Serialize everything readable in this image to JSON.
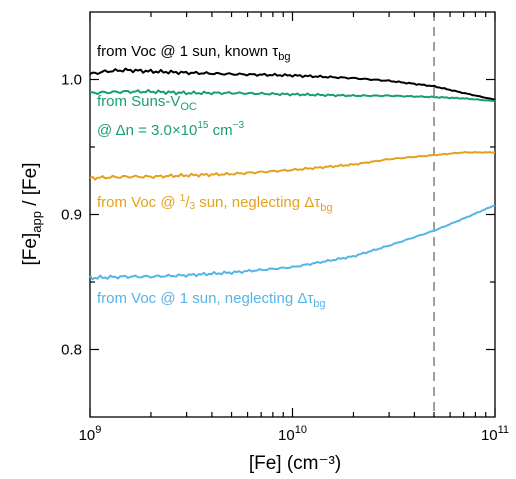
{
  "chart_data": {
    "type": "line",
    "xlabel": "[Fe] (cm⁻³)",
    "ylabel_main": "[Fe]",
    "ylabel_sub": "app",
    "ylabel_rest": " / [Fe]",
    "x_scale": "log",
    "xlim": [
      1000000000.0,
      100000000000.0
    ],
    "ylim": [
      0.75,
      1.05
    ],
    "x_ticks": [
      {
        "value": 1000000000.0,
        "base": "10",
        "exp": "9"
      },
      {
        "value": 10000000000.0,
        "base": "10",
        "exp": "10"
      },
      {
        "value": 100000000000.0,
        "base": "10",
        "exp": "11"
      }
    ],
    "y_ticks": [
      {
        "value": 0.8,
        "label": "0.8"
      },
      {
        "value": 0.9,
        "label": "0.9"
      },
      {
        "value": 1.0,
        "label": "1.0"
      }
    ],
    "vline": {
      "x": 50000000000.0,
      "style": "dashed",
      "color": "#808080"
    },
    "series": [
      {
        "key": "voc_known",
        "color": "#000000",
        "x": [
          1000000000.0,
          1200000000.0,
          1500000000.0,
          2000000000.0,
          3000000000.0,
          5000000000.0,
          10000000000.0,
          20000000000.0,
          30000000000.0,
          50000000000.0,
          70000000000.0,
          100000000000.0
        ],
        "values": [
          1.004,
          1.006,
          1.007,
          1.006,
          1.005,
          1.004,
          1.003,
          1.001,
          0.999,
          0.995,
          0.99,
          0.985
        ]
      },
      {
        "key": "suns_voc",
        "color": "#1a9e77",
        "x": [
          1000000000.0,
          1500000000.0,
          2000000000.0,
          3000000000.0,
          5000000000.0,
          10000000000.0,
          20000000000.0,
          30000000000.0,
          50000000000.0,
          70000000000.0,
          100000000000.0
        ],
        "values": [
          0.99,
          0.991,
          0.991,
          0.99,
          0.99,
          0.989,
          0.988,
          0.988,
          0.987,
          0.986,
          0.984
        ]
      },
      {
        "key": "voc_third_sun",
        "color": "#e6a11c",
        "x": [
          1000000000.0,
          1500000000.0,
          2000000000.0,
          3000000000.0,
          5000000000.0,
          10000000000.0,
          20000000000.0,
          30000000000.0,
          50000000000.0,
          70000000000.0,
          100000000000.0
        ],
        "values": [
          0.927,
          0.928,
          0.928,
          0.929,
          0.93,
          0.933,
          0.937,
          0.941,
          0.944,
          0.946,
          0.946
        ]
      },
      {
        "key": "voc_one_sun_neglect",
        "color": "#56b4e9",
        "x": [
          1000000000.0,
          1500000000.0,
          2000000000.0,
          3000000000.0,
          5000000000.0,
          10000000000.0,
          20000000000.0,
          30000000000.0,
          50000000000.0,
          70000000000.0,
          100000000000.0
        ],
        "values": [
          0.853,
          0.854,
          0.854,
          0.855,
          0.857,
          0.861,
          0.869,
          0.877,
          0.888,
          0.897,
          0.907
        ]
      }
    ],
    "annotations": {
      "a1": {
        "text": "from Voc @ 1 sun, known τ",
        "sub": "bg",
        "color": "#000000"
      },
      "a2": {
        "text": "from Suns-V",
        "sub": "OC",
        "color": "#1a9e77"
      },
      "a3_pre": "@ Δn = 3.0×10",
      "a3_sup": "15",
      "a3_post": " cm",
      "a3_sup2": "−3",
      "a4_pre": "from Voc @ ",
      "a4_sup": "1",
      "a4_slash": "/",
      "a4_sub": "3",
      "a4_post": " sun, neglecting Δτ",
      "a4_sub2": "bg",
      "a5": {
        "text": "from Voc @ 1 sun, neglecting Δτ",
        "sub": "bg",
        "color": "#56b4e9"
      }
    }
  }
}
